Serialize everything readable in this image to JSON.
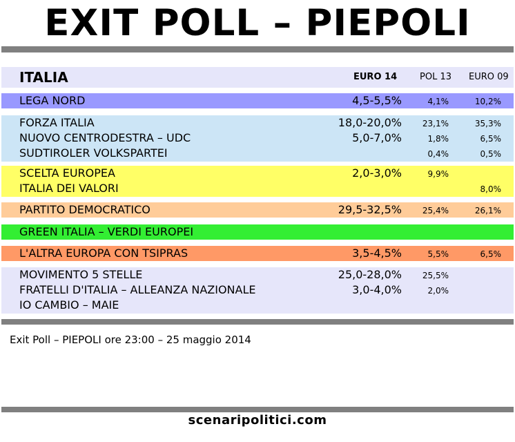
{
  "title": "EXIT POLL – PIEPOLI",
  "header": {
    "region": "ITALIA",
    "col_euro14": "EURO 14",
    "col_pol13": "POL 13",
    "col_euro09": "EURO 09"
  },
  "colors": {
    "rule": "#808080",
    "header": "#e6e6fa",
    "lega": "#9999ff",
    "centrodestra": "#cce5f6",
    "centro": "#ffff66",
    "pd": "#ffcc99",
    "verdi": "#33ee33",
    "tsipras": "#ff9966",
    "altri": "#e6e6fa"
  },
  "chart_data": {
    "type": "table",
    "columns": [
      "EURO 14",
      "POL 13",
      "EURO 09"
    ],
    "groups": [
      {
        "color_key": "lega",
        "rows": [
          {
            "party": "LEGA NORD",
            "euro14": "4,5-5,5%",
            "pol13": "4,1%",
            "euro09": "10,2%"
          }
        ]
      },
      {
        "color_key": "centrodestra",
        "rows": [
          {
            "party": "FORZA ITALIA",
            "euro14": "18,0-20,0%",
            "pol13": "23,1%",
            "euro09": "35,3%"
          },
          {
            "party": "NUOVO CENTRODESTRA – UDC",
            "euro14": "5,0-7,0%",
            "pol13": "1,8%",
            "euro09": "6,5%"
          },
          {
            "party": "SUDTIROLER VOLKSPARTEI",
            "euro14": "",
            "pol13": "0,4%",
            "euro09": "0,5%"
          }
        ]
      },
      {
        "color_key": "centro",
        "rows": [
          {
            "party": "SCELTA EUROPEA",
            "euro14": "2,0-3,0%",
            "pol13": "9,9%",
            "euro09": ""
          },
          {
            "party": "ITALIA DEI VALORI",
            "euro14": "",
            "pol13": "",
            "euro09": "8,0%"
          }
        ]
      },
      {
        "color_key": "pd",
        "rows": [
          {
            "party": "PARTITO DEMOCRATICO",
            "euro14": "29,5-32,5%",
            "pol13": "25,4%",
            "euro09": "26,1%"
          }
        ]
      },
      {
        "color_key": "verdi",
        "rows": [
          {
            "party": "GREEN ITALIA – VERDI EUROPEI",
            "euro14": "",
            "pol13": "",
            "euro09": ""
          }
        ]
      },
      {
        "color_key": "tsipras",
        "rows": [
          {
            "party": "L'ALTRA EUROPA CON TSIPRAS",
            "euro14": "3,5-4,5%",
            "pol13": "5,5%",
            "euro09": "6,5%"
          }
        ]
      },
      {
        "color_key": "altri",
        "rows": [
          {
            "party": "MOVIMENTO 5 STELLE",
            "euro14": "25,0-28,0%",
            "pol13": "25,5%",
            "euro09": ""
          },
          {
            "party": "FRATELLI D'ITALIA – ALLEANZA NAZIONALE",
            "euro14": "3,0-4,0%",
            "pol13": "2,0%",
            "euro09": ""
          },
          {
            "party": "IO CAMBIO – MAIE",
            "euro14": "",
            "pol13": "",
            "euro09": ""
          }
        ]
      }
    ]
  },
  "source": "Exit Poll – PIEPOLI ore 23:00 – 25 maggio 2014",
  "site": "scenaripolitici.com"
}
